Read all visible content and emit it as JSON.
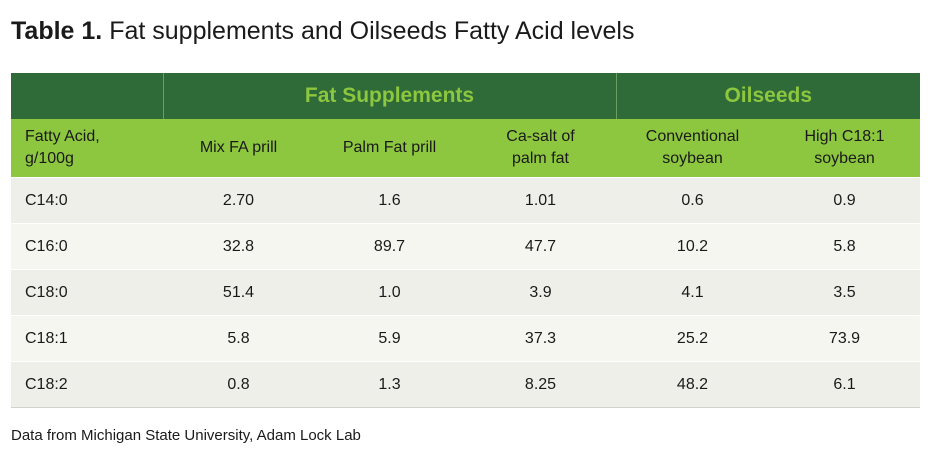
{
  "title": {
    "label": "Table 1.",
    "text": "Fat supplements and Oilseeds Fatty Acid levels"
  },
  "groups": [
    {
      "label": ""
    },
    {
      "label": "Fat Supplements"
    },
    {
      "label": "Oilseeds"
    }
  ],
  "columns": [
    "Fatty Acid,\ng/100g",
    "Mix FA prill",
    "Palm Fat prill",
    "Ca-salt of\npalm fat",
    "Conventional\nsoybean",
    "High C18:1\nsoybean"
  ],
  "rows": [
    [
      "C14:0",
      "2.70",
      "1.6",
      "1.01",
      "0.6",
      "0.9"
    ],
    [
      "C16:0",
      "32.8",
      "89.7",
      "47.7",
      "10.2",
      "5.8"
    ],
    [
      "C18:0",
      "51.4",
      "1.0",
      "3.9",
      "4.1",
      "3.5"
    ],
    [
      "C18:1",
      "5.8",
      "5.9",
      "37.3",
      "25.2",
      "73.9"
    ],
    [
      "C18:2",
      "0.8",
      "1.3",
      "8.25",
      "48.2",
      "6.1"
    ]
  ],
  "caption": "Data from Michigan State University, Adam Lock Lab",
  "colors": {
    "dark_green": "#2e6b38",
    "light_green": "#8dc63f",
    "row_shade": "#efefe9"
  }
}
